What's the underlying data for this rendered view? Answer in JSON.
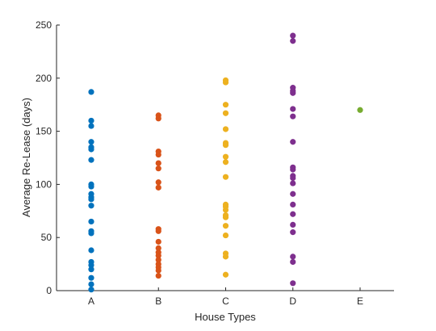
{
  "chart_data": {
    "type": "scatter",
    "title": "",
    "xlabel": "House Types",
    "ylabel": "Average Re-Lease (days)",
    "categories": [
      "A",
      "B",
      "C",
      "D",
      "E"
    ],
    "ylim": [
      0,
      250
    ],
    "yticks": [
      0,
      50,
      100,
      150,
      200,
      250
    ],
    "grid": false,
    "legend": "none",
    "series": [
      {
        "category": "A",
        "color": "#0072BD",
        "values": [
          187,
          160,
          155,
          140,
          135,
          133,
          123,
          100,
          98,
          91,
          88,
          86,
          80,
          65,
          56,
          54,
          38,
          27,
          24,
          20,
          12,
          6,
          1
        ]
      },
      {
        "category": "B",
        "color": "#D95319",
        "values": [
          165,
          162,
          131,
          128,
          120,
          115,
          102,
          97,
          58,
          56,
          46,
          40,
          36,
          33,
          29,
          25,
          22,
          19,
          14
        ]
      },
      {
        "category": "C",
        "color": "#EDB120",
        "values": [
          198,
          196,
          175,
          167,
          152,
          139,
          137,
          126,
          121,
          107,
          81,
          79,
          76,
          71,
          69,
          61,
          52,
          35,
          32,
          15
        ]
      },
      {
        "category": "D",
        "color": "#7E2F8E",
        "values": [
          240,
          235,
          191,
          188,
          186,
          171,
          164,
          140,
          116,
          114,
          108,
          106,
          101,
          91,
          81,
          72,
          62,
          55,
          32,
          27,
          7
        ]
      },
      {
        "category": "E",
        "color": "#77AC30",
        "values": [
          170
        ]
      }
    ]
  }
}
